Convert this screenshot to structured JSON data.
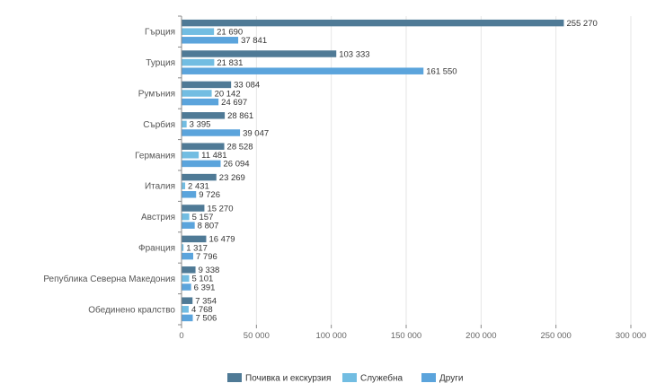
{
  "colors": {
    "leisure": "#4f7a96",
    "business": "#72bde2",
    "other": "#5ba4dc"
  },
  "chart_data": {
    "type": "bar",
    "orientation": "horizontal",
    "categories": [
      "Гърция",
      "Турция",
      "Румъния",
      "Сърбия",
      "Германия",
      "Италия",
      "Австрия",
      "Франция",
      "Република Северна Македония",
      "Обединено кралство"
    ],
    "series": [
      {
        "name": "Почивка и екскурзия",
        "values": [
          255270,
          103333,
          33084,
          28861,
          28528,
          23269,
          15270,
          16479,
          9338,
          7354
        ],
        "labels": [
          "255 270",
          "103 333",
          "33 084",
          "28 861",
          "28 528",
          "23 269",
          "15 270",
          "16 479",
          "9 338",
          "7 354"
        ]
      },
      {
        "name": "Служебна",
        "values": [
          21690,
          21831,
          20142,
          3395,
          11481,
          2431,
          5157,
          1317,
          5101,
          4768
        ],
        "labels": [
          "21 690",
          "21 831",
          "20 142",
          "3 395",
          "11 481",
          "2 431",
          "5 157",
          "1 317",
          "5 101",
          "4 768"
        ]
      },
      {
        "name": "Други",
        "values": [
          37841,
          161550,
          24697,
          39047,
          26094,
          9726,
          8807,
          7796,
          6391,
          7506
        ],
        "labels": [
          "37 841",
          "161 550",
          "24 697",
          "39 047",
          "26 094",
          "9 726",
          "8 807",
          "7 796",
          "6 391",
          "7 506"
        ]
      }
    ],
    "xlim": [
      0,
      300000
    ],
    "ticks": [
      {
        "value": 0,
        "label": "0"
      },
      {
        "value": 50000,
        "label": "50 000"
      },
      {
        "value": 100000,
        "label": "100 000"
      },
      {
        "value": 150000,
        "label": "150 000"
      },
      {
        "value": 200000,
        "label": "200 000"
      },
      {
        "value": 250000,
        "label": "250 000"
      },
      {
        "value": 300000,
        "label": "300 000"
      }
    ],
    "grid": true,
    "legend_position": "bottom-center"
  }
}
